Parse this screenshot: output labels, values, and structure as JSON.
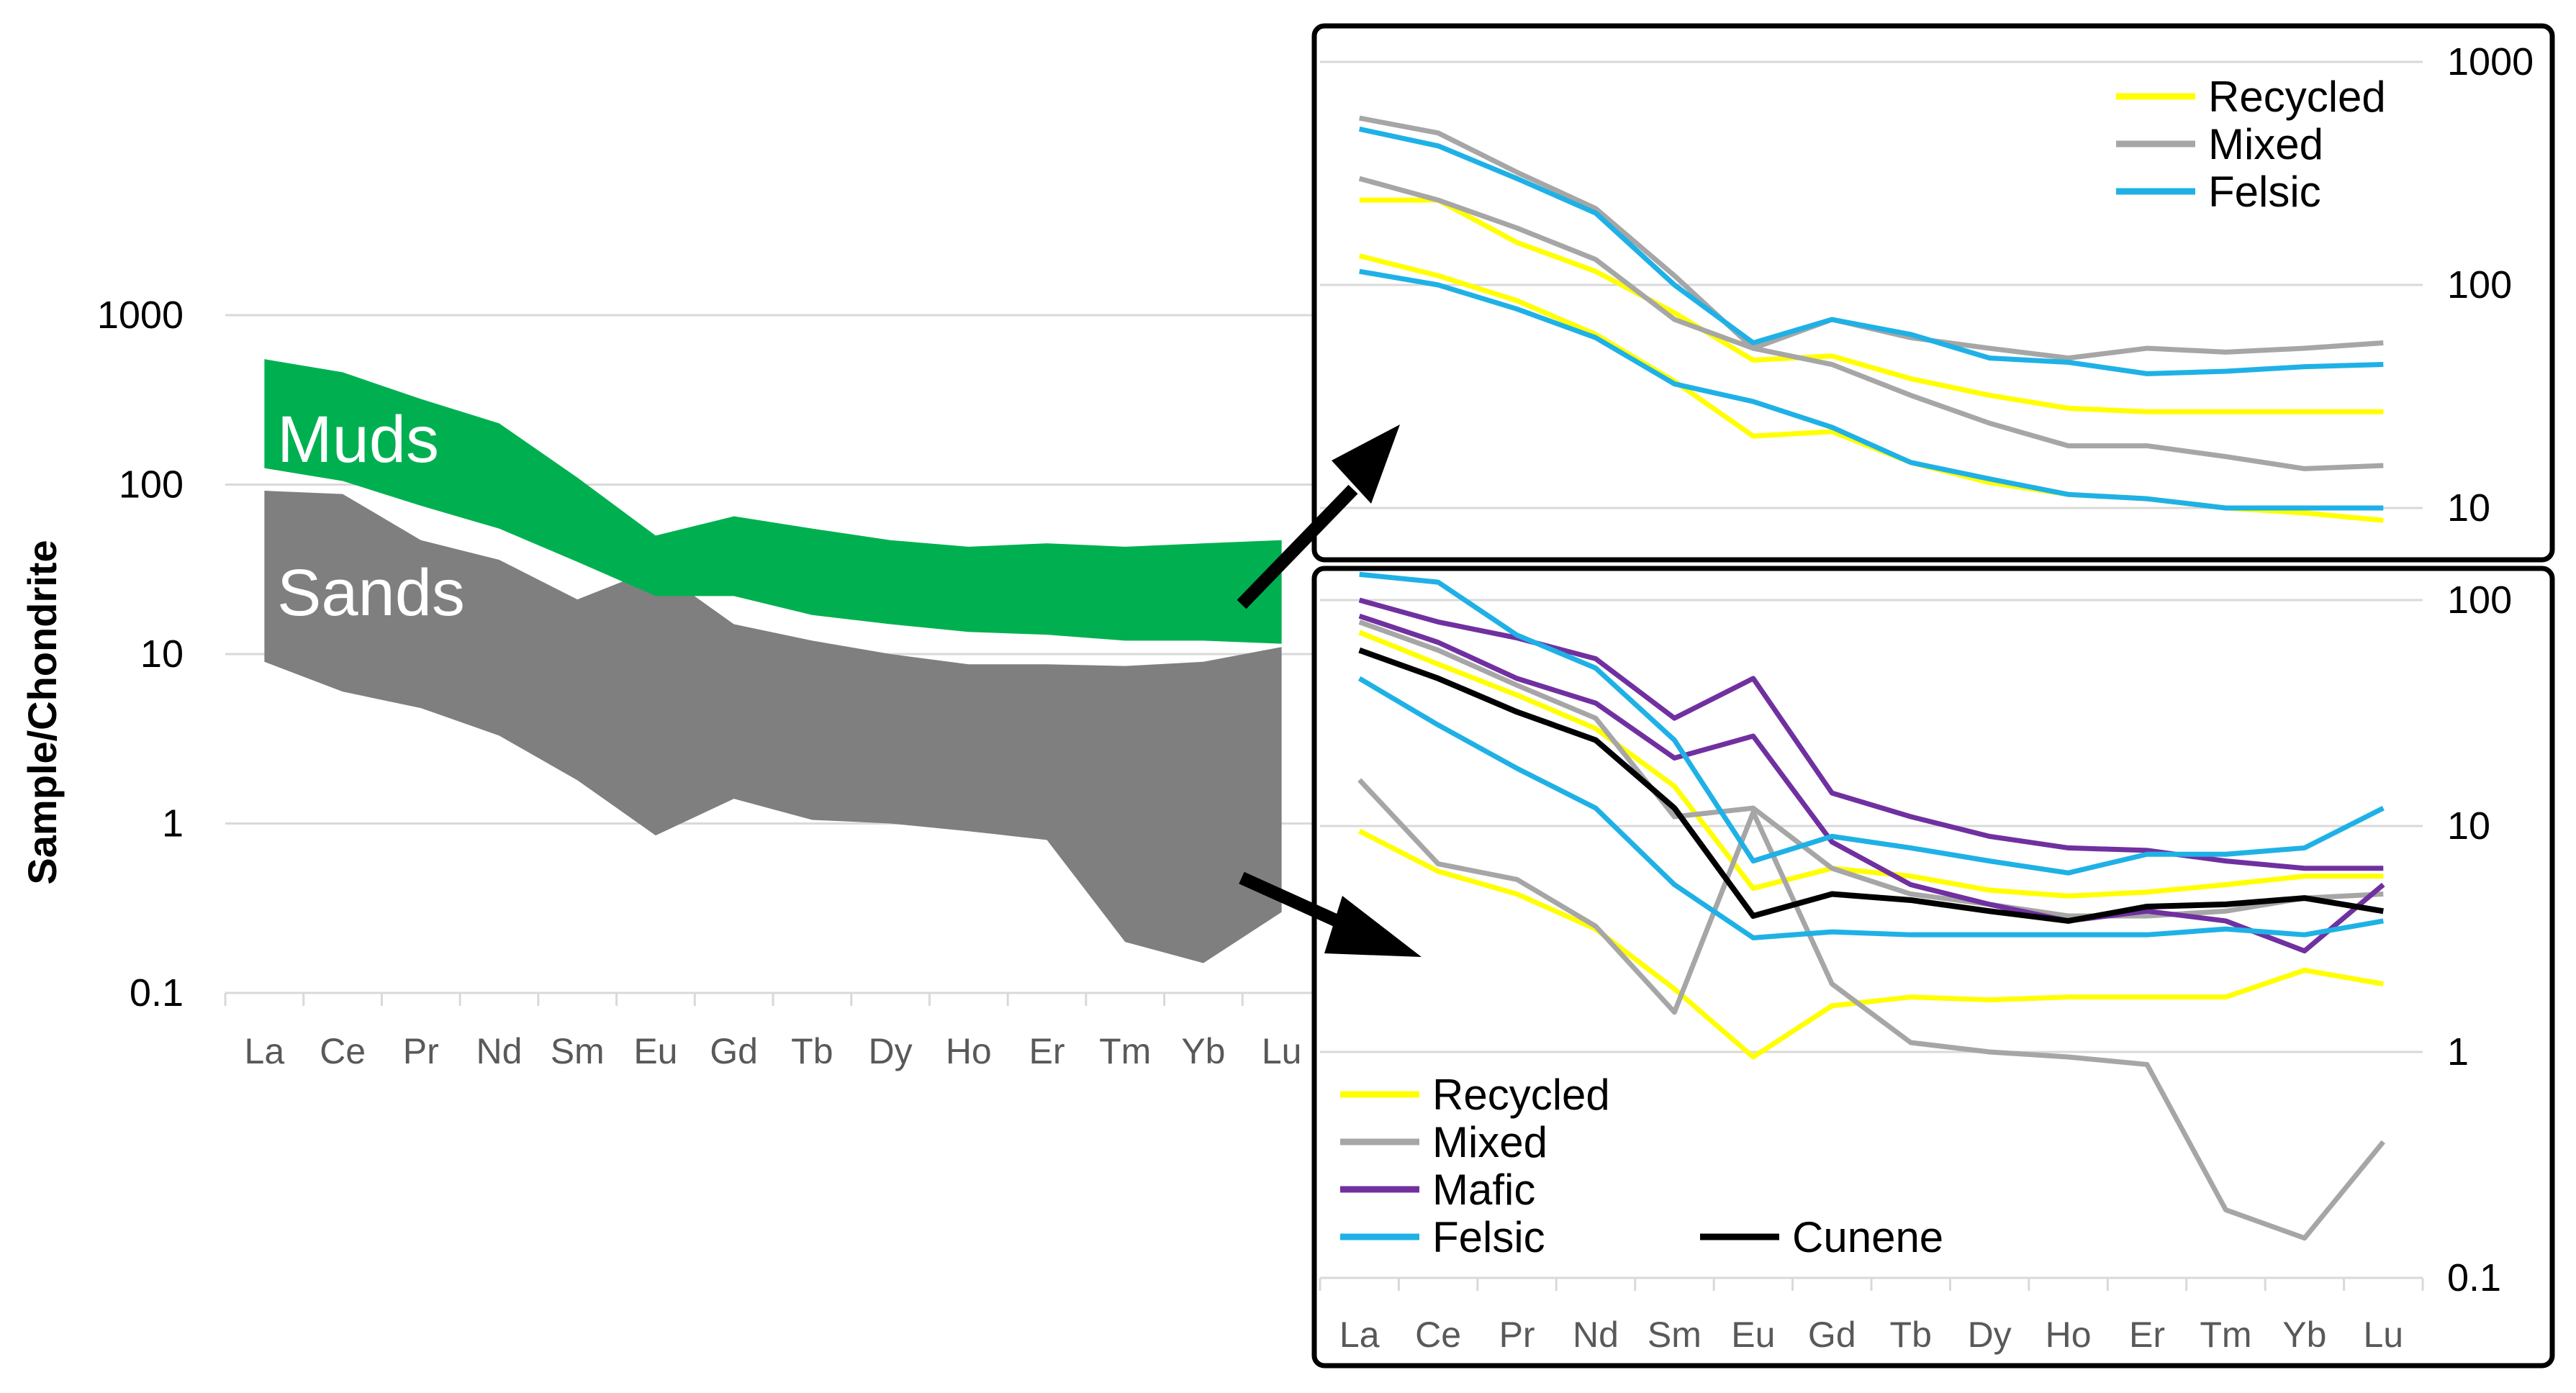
{
  "figure": {
    "ylabel": "Sample/Chondrite",
    "colors": {
      "muds": "#00b050",
      "sands": "#7f7f7f",
      "recycled": "#ffff00",
      "mixed": "#a6a6a6",
      "mafic": "#7030a0",
      "felsic": "#1fb1e6",
      "cunene": "#000000"
    }
  },
  "chart_data": [
    {
      "id": "overview",
      "type": "area",
      "title": "",
      "xlabel": "",
      "ylabel": "Sample/Chondrite",
      "yscale": "log",
      "ylim": [
        0.1,
        1000
      ],
      "yticks": [
        "0.1",
        "1",
        "10",
        "100",
        "1000"
      ],
      "categories": [
        "La",
        "Ce",
        "Pr",
        "Nd",
        "Sm",
        "Eu",
        "Gd",
        "Tb",
        "Dy",
        "Ho",
        "Er",
        "Tm",
        "Yb",
        "Lu"
      ],
      "series": [
        {
          "name": "Muds",
          "color": "#00b050",
          "upper": [
            550,
            460,
            320,
            230,
            110,
            50,
            65,
            55,
            47,
            43,
            45,
            43,
            45,
            47
          ],
          "lower": [
            125,
            105,
            75,
            55,
            35,
            22,
            22,
            17,
            15,
            13.5,
            13,
            12,
            12,
            11.5
          ]
        },
        {
          "name": "Sands",
          "color": "#7f7f7f",
          "upper": [
            92,
            88,
            47,
            36,
            21,
            32,
            15,
            12,
            10,
            8.7,
            8.7,
            8.5,
            9,
            11
          ],
          "lower": [
            9,
            6,
            4.8,
            3.3,
            1.8,
            0.85,
            1.4,
            1.05,
            1,
            0.9,
            0.8,
            0.2,
            0.15,
            0.3
          ]
        }
      ]
    },
    {
      "id": "muds_detail",
      "type": "line",
      "title": "",
      "yscale": "log",
      "ylim": [
        10,
        1000
      ],
      "yticks": [
        "10",
        "100",
        "1000"
      ],
      "categories": [
        "La",
        "Ce",
        "Pr",
        "Nd",
        "Sm",
        "Eu",
        "Gd",
        "Tb",
        "Dy",
        "Ho",
        "Er",
        "Tm",
        "Yb",
        "Lu"
      ],
      "legend": [
        "Recycled",
        "Mixed",
        "Felsic"
      ],
      "series": [
        {
          "name": "Recycled",
          "color": "#ffff00",
          "values": [
            240,
            240,
            155,
            115,
            75,
            46,
            48,
            38,
            32,
            28,
            27,
            27,
            27,
            27
          ]
        },
        {
          "name": "Recycled",
          "color": "#ffff00",
          "values": [
            135,
            110,
            85,
            60,
            37,
            21,
            22,
            16,
            13,
            11.5,
            11,
            10,
            9.5,
            8.8
          ]
        },
        {
          "name": "Mixed",
          "color": "#a6a6a6",
          "values": [
            560,
            480,
            320,
            220,
            110,
            52,
            70,
            58,
            52,
            47,
            52,
            50,
            52,
            55
          ]
        },
        {
          "name": "Mixed",
          "color": "#a6a6a6",
          "values": [
            300,
            240,
            180,
            130,
            70,
            52,
            44,
            32,
            24,
            19,
            19,
            17,
            15,
            15.5
          ]
        },
        {
          "name": "Felsic",
          "color": "#1fb1e6",
          "values": [
            500,
            420,
            300,
            210,
            100,
            55,
            70,
            60,
            47,
            45,
            40,
            41,
            43,
            44
          ]
        },
        {
          "name": "Felsic",
          "color": "#1fb1e6",
          "values": [
            115,
            100,
            78,
            58,
            36,
            30,
            23,
            16,
            13.5,
            11.5,
            11,
            10,
            10,
            10
          ]
        }
      ]
    },
    {
      "id": "sands_detail",
      "type": "line",
      "title": "",
      "yscale": "log",
      "ylim": [
        0.1,
        100
      ],
      "yticks": [
        "0.1",
        "1",
        "10",
        "100"
      ],
      "categories": [
        "La",
        "Ce",
        "Pr",
        "Nd",
        "Sm",
        "Eu",
        "Gd",
        "Tb",
        "Dy",
        "Ho",
        "Er",
        "Tm",
        "Yb",
        "Lu"
      ],
      "legend": [
        "Recycled",
        "Mixed",
        "Mafic",
        "Felsic",
        "Cunene"
      ],
      "series": [
        {
          "name": "Recycled",
          "color": "#ffff00",
          "values": [
            72,
            52,
            38,
            27,
            15,
            5.3,
            6.5,
            6,
            5.2,
            4.9,
            5.1,
            5.5,
            6,
            6
          ]
        },
        {
          "name": "Recycled",
          "color": "#ffff00",
          "values": [
            9.5,
            6.3,
            5,
            3.5,
            1.9,
            0.95,
            1.6,
            1.75,
            1.7,
            1.75,
            1.75,
            1.75,
            2.3,
            2
          ]
        },
        {
          "name": "Mixed",
          "color": "#a6a6a6",
          "values": [
            16,
            6.8,
            5.8,
            3.6,
            1.5,
            11.5,
            2,
            1.1,
            1,
            0.95,
            0.88,
            0.2,
            0.15,
            0.4
          ]
        },
        {
          "name": "Mixed",
          "color": "#a6a6a6",
          "values": [
            80,
            60,
            42,
            30,
            11,
            12,
            6.5,
            5,
            4.5,
            4,
            4,
            4.2,
            4.8,
            5
          ]
        },
        {
          "name": "Mafic",
          "color": "#7030a0",
          "values": [
            100,
            80,
            68,
            55,
            30,
            45,
            14,
            11,
            9,
            8,
            7.8,
            7,
            6.5,
            6.5
          ]
        },
        {
          "name": "Mafic",
          "color": "#7030a0",
          "values": [
            85,
            65,
            45,
            35,
            20,
            25,
            8.5,
            5.5,
            4.5,
            3.8,
            4.2,
            3.8,
            2.8,
            5.5
          ]
        },
        {
          "name": "Felsic",
          "color": "#1fb1e6",
          "values": [
            130,
            120,
            70,
            50,
            24,
            7,
            9,
            8,
            7,
            6.2,
            7.5,
            7.5,
            8,
            12
          ]
        },
        {
          "name": "Felsic",
          "color": "#1fb1e6",
          "values": [
            45,
            28,
            18,
            12,
            5.5,
            3.2,
            3.4,
            3.3,
            3.3,
            3.3,
            3.3,
            3.5,
            3.3,
            3.8
          ]
        },
        {
          "name": "Cunene",
          "color": "#000000",
          "values": [
            60,
            45,
            32,
            24,
            12,
            4,
            5,
            4.7,
            4.2,
            3.8,
            4.4,
            4.5,
            4.8,
            4.2
          ]
        }
      ]
    }
  ],
  "labels": {
    "muds": "Muds",
    "sands": "Sands"
  }
}
